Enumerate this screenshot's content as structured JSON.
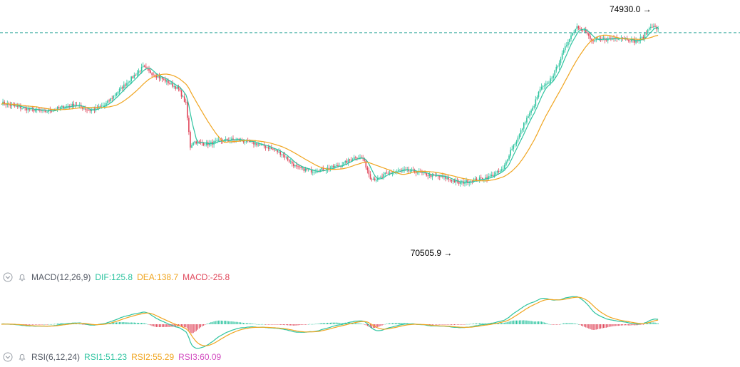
{
  "chart_data": {
    "type": "candlestick",
    "price_range": [
      70200,
      75200
    ],
    "reference_line": 74650,
    "annotations": {
      "high_label": "74930.0",
      "low_label": "70505.9"
    },
    "colors": {
      "up": "#2ec4a0",
      "down": "#e0475b",
      "ma_fast": "#2ec4a0",
      "ma_slow": "#f0a520",
      "reference": "#2ea79a"
    },
    "price_anchors": [
      [
        0,
        73220
      ],
      [
        10,
        73140
      ],
      [
        20,
        73080
      ],
      [
        30,
        73040
      ],
      [
        40,
        73120
      ],
      [
        50,
        73180
      ],
      [
        60,
        73060
      ],
      [
        70,
        73170
      ],
      [
        80,
        73480
      ],
      [
        90,
        73780
      ],
      [
        96,
        73950
      ],
      [
        100,
        73860
      ],
      [
        110,
        73690
      ],
      [
        120,
        73500
      ],
      [
        125,
        73200
      ],
      [
        128,
        72320
      ],
      [
        130,
        72430
      ],
      [
        140,
        72380
      ],
      [
        150,
        72450
      ],
      [
        160,
        72470
      ],
      [
        170,
        72400
      ],
      [
        180,
        72320
      ],
      [
        190,
        72180
      ],
      [
        200,
        71900
      ],
      [
        210,
        71830
      ],
      [
        220,
        71870
      ],
      [
        230,
        71950
      ],
      [
        240,
        72120
      ],
      [
        245,
        72080
      ],
      [
        250,
        71700
      ],
      [
        255,
        71650
      ],
      [
        260,
        71760
      ],
      [
        270,
        71840
      ],
      [
        280,
        71820
      ],
      [
        290,
        71740
      ],
      [
        300,
        71700
      ],
      [
        310,
        71580
      ],
      [
        320,
        71640
      ],
      [
        330,
        71700
      ],
      [
        340,
        71860
      ],
      [
        345,
        72250
      ],
      [
        350,
        72500
      ],
      [
        355,
        72850
      ],
      [
        360,
        73100
      ],
      [
        365,
        73500
      ],
      [
        370,
        73600
      ],
      [
        375,
        73850
      ],
      [
        380,
        74200
      ],
      [
        385,
        74550
      ],
      [
        390,
        74780
      ],
      [
        395,
        74700
      ],
      [
        400,
        74480
      ],
      [
        410,
        74520
      ],
      [
        420,
        74560
      ],
      [
        430,
        74470
      ],
      [
        435,
        74560
      ],
      [
        440,
        74800
      ],
      [
        445,
        74720
      ]
    ],
    "macd_params": "MACD(12,26,9)",
    "macd_values": {
      "dif": "DIF:125.8",
      "dea": "DEA:138.7",
      "macd": "MACD:-25.8"
    },
    "rsi_params": "RSI(6,12,24)",
    "rsi_values": {
      "rsi1": "RSI1:51.23",
      "rsi2": "RSI2:55.29",
      "rsi3": "RSI3:60.09"
    }
  },
  "icons": {
    "collapse": "chevron-down-circle-icon",
    "alert": "bell-icon"
  }
}
